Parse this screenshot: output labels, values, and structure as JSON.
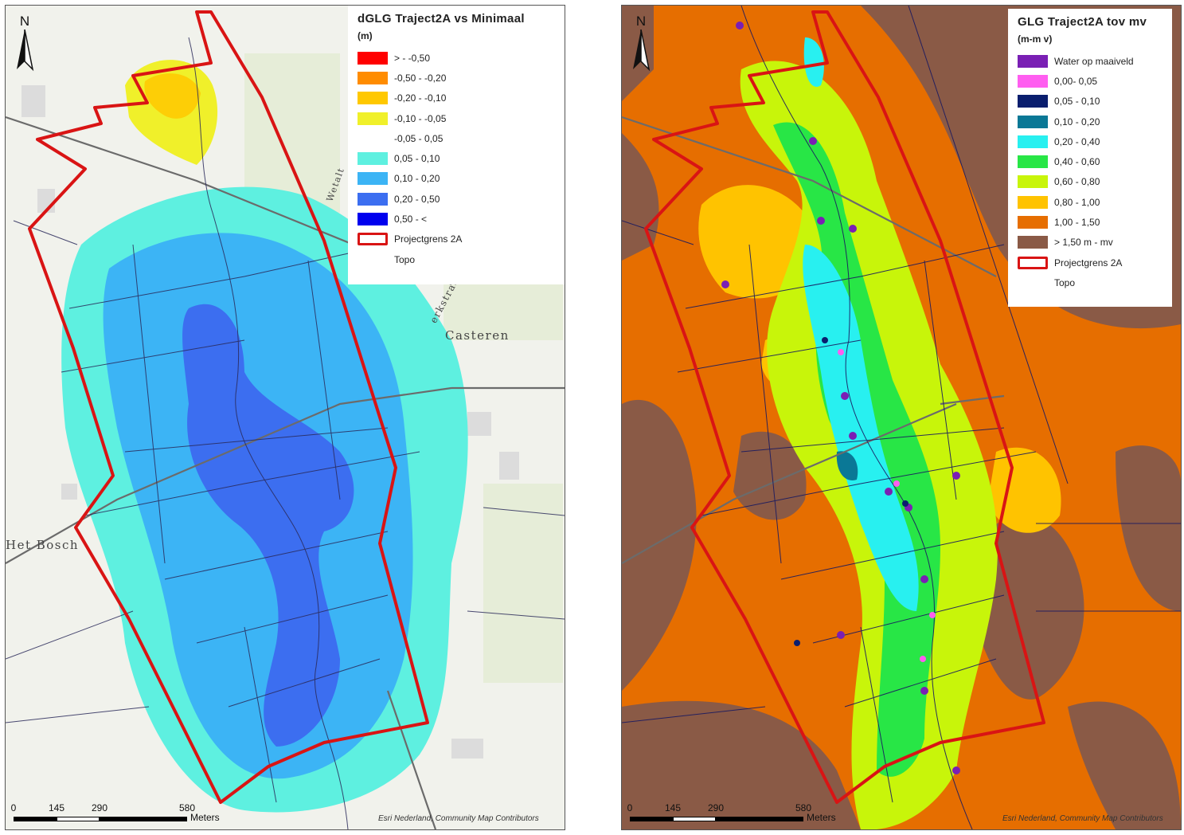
{
  "left_map": {
    "legend": {
      "title": "dGLG Traject2A vs Minimaal",
      "unit": "(m)",
      "items": [
        {
          "label": "> - -0,50",
          "color": "#ff0000"
        },
        {
          "label": "-0,50 - -0,20",
          "color": "#ff8c00"
        },
        {
          "label": "-0,20 - -0,10",
          "color": "#ffc800"
        },
        {
          "label": "-0,10 - -0,05",
          "color": "#f0f02a"
        },
        {
          "label": "-0,05 - 0,05",
          "color": ""
        },
        {
          "label": "0,05 - 0,10",
          "color": "#5ef0e0"
        },
        {
          "label": "0,10 - 0,20",
          "color": "#3cb4f5"
        },
        {
          "label": "0,20 - 0,50",
          "color": "#3c6ef0"
        },
        {
          "label": "0,50 - <",
          "color": "#0000ee"
        },
        {
          "label": "Projectgrens 2A",
          "color": "outline"
        },
        {
          "label": "Topo",
          "color": ""
        }
      ]
    },
    "north": "N",
    "place_names": [
      "Casteren",
      "Het Bosch",
      "erkstraat",
      "Wetalt"
    ],
    "scale": {
      "ticks": [
        "0",
        "145",
        "290",
        "580"
      ],
      "units": "Meters"
    },
    "credit": "Esri Nederland, Community Map Contributors"
  },
  "right_map": {
    "legend": {
      "title": "GLG Traject2A tov mv",
      "unit": "(m-m v)",
      "items": [
        {
          "label": "Water op maaiveld",
          "color": "#7a1fb4"
        },
        {
          "label": "0,00- 0,05",
          "color": "#ff5ef0"
        },
        {
          "label": "0,05 - 0,10",
          "color": "#0a1e6e"
        },
        {
          "label": "0,10 - 0,20",
          "color": "#0a7896"
        },
        {
          "label": "0,20 - 0,40",
          "color": "#28f0f0"
        },
        {
          "label": "0,40 - 0,60",
          "color": "#28e646"
        },
        {
          "label": "0,60 - 0,80",
          "color": "#c8f50a"
        },
        {
          "label": "0,80 - 1,00",
          "color": "#ffc300"
        },
        {
          "label": "1,00 - 1,50",
          "color": "#e66e00"
        },
        {
          "label": "> 1,50 m - mv",
          "color": "#8a5a46"
        },
        {
          "label": "Projectgrens 2A",
          "color": "outline"
        },
        {
          "label": "Topo",
          "color": ""
        }
      ]
    },
    "north": "N",
    "scale": {
      "ticks": [
        "0",
        "145",
        "290",
        "580"
      ],
      "units": "Meters"
    },
    "credit": "Esri Nederland, Community Map Contributors"
  }
}
